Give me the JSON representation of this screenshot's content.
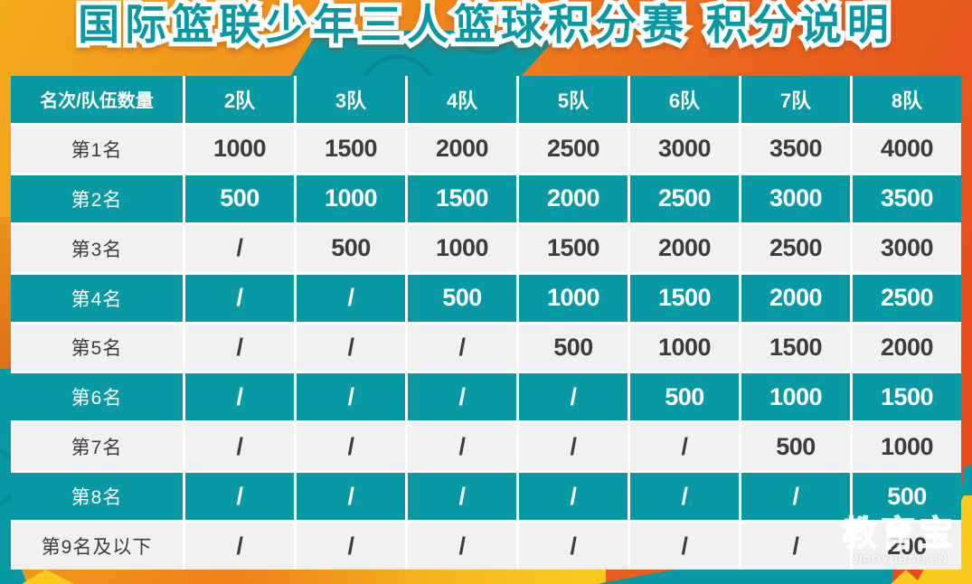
{
  "chart_data": {
    "type": "table",
    "title": "国际篮联少年三人篮球积分赛 积分说明",
    "columns": [
      "名次/队伍数量",
      "2队",
      "3队",
      "4队",
      "5队",
      "6队",
      "7队",
      "8队"
    ],
    "rows": [
      [
        "第1名",
        "1000",
        "1500",
        "2000",
        "2500",
        "3000",
        "3500",
        "4000"
      ],
      [
        "第2名",
        "500",
        "1000",
        "1500",
        "2000",
        "2500",
        "3000",
        "3500"
      ],
      [
        "第3名",
        "/",
        "500",
        "1000",
        "1500",
        "2000",
        "2500",
        "3000"
      ],
      [
        "第4名",
        "/",
        "/",
        "500",
        "1000",
        "1500",
        "2000",
        "2500"
      ],
      [
        "第5名",
        "/",
        "/",
        "/",
        "500",
        "1000",
        "1500",
        "2000"
      ],
      [
        "第6名",
        "/",
        "/",
        "/",
        "/",
        "500",
        "1000",
        "1500"
      ],
      [
        "第7名",
        "/",
        "/",
        "/",
        "/",
        "/",
        "500",
        "1000"
      ],
      [
        "第8名",
        "/",
        "/",
        "/",
        "/",
        "/",
        "/",
        "500"
      ],
      [
        "第9名及以下",
        "/",
        "/",
        "/",
        "/",
        "/",
        "/",
        "200"
      ]
    ],
    "legend_position": "none",
    "grid": true
  },
  "colors": {
    "teal": "#0999a4",
    "row-light": "#f1f1f2",
    "text-dark": "#3c3c3c",
    "orange-yellow": "#f4ab1e",
    "orange-red": "#e6481e",
    "yellow": "#f8cb1e"
  },
  "watermark": {
    "name": "教育宝",
    "domain": "JIAOYUBAO.CN"
  }
}
